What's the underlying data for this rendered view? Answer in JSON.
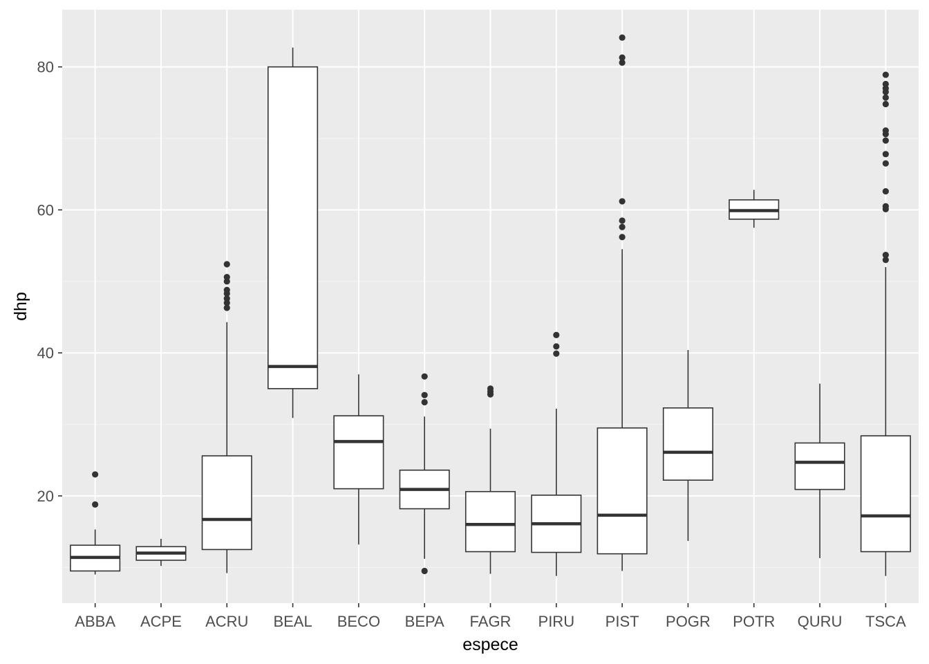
{
  "chart_data": {
    "type": "boxplot",
    "title": "",
    "xlabel": "espece",
    "ylabel": "dhp",
    "ylim": [
      5,
      88
    ],
    "y_ticks": [
      20,
      40,
      60,
      80
    ],
    "y_minor_ticks": [
      10,
      30,
      50,
      70
    ],
    "grid": true,
    "categories": [
      "ABBA",
      "ACPE",
      "ACRU",
      "BEAL",
      "BECO",
      "BEPA",
      "FAGR",
      "PIRU",
      "PIST",
      "POGR",
      "POTR",
      "QURU",
      "TSCA"
    ],
    "boxes": [
      {
        "category": "ABBA",
        "whisker_low": 9.0,
        "q1": 9.5,
        "median": 11.4,
        "q3": 13.1,
        "whisker_high": 15.3,
        "outliers": [
          18.8,
          23.0
        ]
      },
      {
        "category": "ACPE",
        "whisker_low": 10.2,
        "q1": 11.0,
        "median": 12.0,
        "q3": 12.9,
        "whisker_high": 14.0,
        "outliers": []
      },
      {
        "category": "ACRU",
        "whisker_low": 9.2,
        "q1": 12.5,
        "median": 16.7,
        "q3": 25.6,
        "whisker_high": 44.3,
        "outliers": [
          46.3,
          47.0,
          47.6,
          48.3,
          48.8,
          50.0,
          50.6,
          52.4
        ]
      },
      {
        "category": "BEAL",
        "whisker_low": 30.9,
        "q1": 35.0,
        "median": 38.1,
        "q3": 80.0,
        "whisker_high": 82.7,
        "outliers": []
      },
      {
        "category": "BECO",
        "whisker_low": 13.2,
        "q1": 21.0,
        "median": 27.6,
        "q3": 31.2,
        "whisker_high": 37.0,
        "outliers": []
      },
      {
        "category": "BEPA",
        "whisker_low": 11.2,
        "q1": 18.2,
        "median": 20.9,
        "q3": 23.6,
        "whisker_high": 31.1,
        "outliers": [
          9.5,
          33.1,
          34.1,
          36.7
        ]
      },
      {
        "category": "FAGR",
        "whisker_low": 9.1,
        "q1": 12.2,
        "median": 16.0,
        "q3": 20.6,
        "whisker_high": 29.4,
        "outliers": [
          34.2,
          34.6,
          35.0
        ]
      },
      {
        "category": "PIRU",
        "whisker_low": 8.8,
        "q1": 12.1,
        "median": 16.1,
        "q3": 20.1,
        "whisker_high": 32.2,
        "outliers": [
          39.9,
          40.9,
          42.5
        ]
      },
      {
        "category": "PIST",
        "whisker_low": 9.5,
        "q1": 11.9,
        "median": 17.3,
        "q3": 29.5,
        "whisker_high": 54.5,
        "outliers": [
          56.2,
          57.6,
          58.5,
          61.2,
          80.6,
          81.3,
          84.1
        ]
      },
      {
        "category": "POGR",
        "whisker_low": 13.7,
        "q1": 22.2,
        "median": 26.1,
        "q3": 32.3,
        "whisker_high": 40.4,
        "outliers": []
      },
      {
        "category": "POTR",
        "whisker_low": 57.5,
        "q1": 58.7,
        "median": 59.9,
        "q3": 61.4,
        "whisker_high": 62.8,
        "outliers": []
      },
      {
        "category": "QURU",
        "whisker_low": 11.3,
        "q1": 20.9,
        "median": 24.7,
        "q3": 27.4,
        "whisker_high": 35.7,
        "outliers": []
      },
      {
        "category": "TSCA",
        "whisker_low": 8.8,
        "q1": 12.2,
        "median": 17.2,
        "q3": 28.4,
        "whisker_high": 52.0,
        "outliers": [
          53.0,
          53.7,
          60.1,
          60.5,
          62.6,
          66.5,
          67.8,
          69.7,
          70.6,
          71.1,
          74.8,
          75.7,
          76.5,
          77.0,
          77.6,
          78.9
        ]
      }
    ]
  },
  "colors": {
    "panel_background": "#ebebeb",
    "grid_major": "#ffffff",
    "grid_minor": "#f5f5f5",
    "box_fill": "#ffffff",
    "box_stroke": "#333333",
    "outlier": "#333333",
    "tick_label": "#4d4d4d",
    "tick_mark": "#333333",
    "axis_title": "#000000"
  }
}
